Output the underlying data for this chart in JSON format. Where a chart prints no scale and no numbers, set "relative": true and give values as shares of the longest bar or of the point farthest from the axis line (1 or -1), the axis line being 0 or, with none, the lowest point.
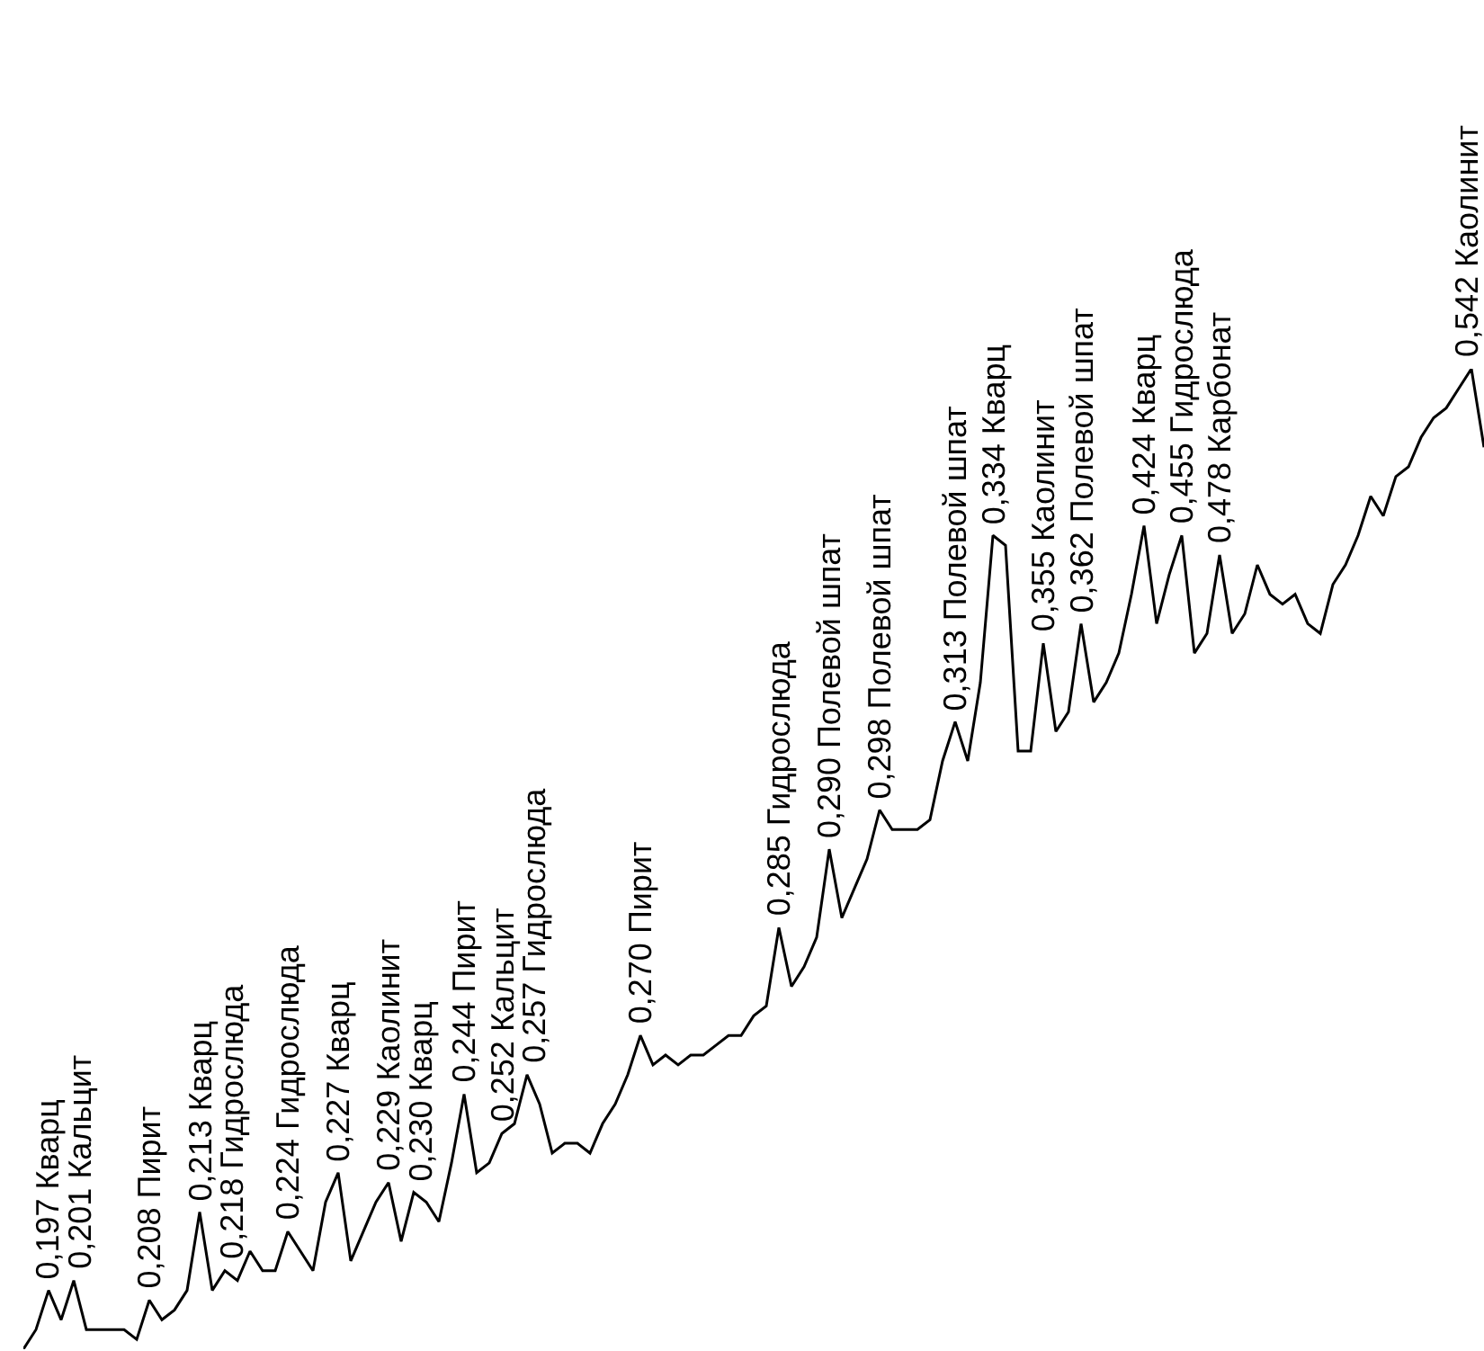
{
  "chart_data": {
    "type": "line",
    "relative": true,
    "categories": [
      null,
      null,
      null,
      null,
      null,
      null,
      null,
      null,
      null,
      null,
      null,
      null,
      null,
      null,
      null,
      null,
      null,
      null,
      null,
      null,
      null,
      null,
      null,
      null,
      null,
      null,
      null,
      null,
      null,
      null,
      null,
      null,
      null,
      null,
      null,
      null,
      null,
      null,
      null,
      null,
      null,
      null,
      null,
      null,
      null,
      null,
      null,
      null,
      null,
      null,
      null,
      null,
      null,
      null,
      null,
      null,
      null,
      null,
      null,
      null,
      null,
      null,
      null,
      null,
      null,
      null,
      null,
      null,
      null,
      null,
      null,
      null,
      null,
      null,
      null,
      null,
      null,
      null,
      null,
      null,
      null,
      null,
      null,
      null,
      null,
      null,
      null,
      null,
      null,
      null,
      null,
      null,
      null,
      null,
      null,
      null,
      null,
      null,
      null,
      null,
      null,
      null,
      null,
      null,
      null,
      null,
      null,
      null,
      null,
      null,
      null,
      null,
      null,
      null,
      null,
      null,
      null
    ],
    "series": [
      {
        "color": "#000000",
        "values": [
          0,
          0.02,
          0.06,
          0.03,
          0.07,
          0.02,
          0.02,
          0.02,
          0.02,
          0.01,
          0.05,
          0.03,
          0.04,
          0.06,
          0.14,
          0.06,
          0.08,
          0.07,
          0.1,
          0.08,
          0.08,
          0.12,
          0.1,
          0.08,
          0.15,
          0.18,
          0.09,
          0.12,
          0.15,
          0.17,
          0.11,
          0.16,
          0.15,
          0.13,
          0.19,
          0.26,
          0.18,
          0.19,
          0.22,
          0.23,
          0.28,
          0.25,
          0.2,
          0.21,
          0.21,
          0.2,
          0.23,
          0.25,
          0.28,
          0.32,
          0.29,
          0.3,
          0.29,
          0.3,
          0.3,
          0.31,
          0.32,
          0.32,
          0.34,
          0.35,
          0.43,
          0.37,
          0.39,
          0.42,
          0.51,
          0.44,
          0.47,
          0.5,
          0.55,
          0.53,
          0.53,
          0.53,
          0.54,
          0.6,
          0.64,
          0.6,
          0.68,
          0.83,
          0.82,
          0.61,
          0.61,
          0.72,
          0.63,
          0.65,
          0.74,
          0.66,
          0.68,
          0.71,
          0.77,
          0.84,
          0.74,
          0.79,
          0.83,
          0.71,
          0.73,
          0.81,
          0.73,
          0.75,
          0.8,
          0.77,
          0.76,
          0.77,
          0.74,
          0.73,
          0.78,
          0.8,
          0.83,
          0.87,
          0.85,
          0.89,
          0.9,
          0.93,
          0.95,
          0.96,
          0.98,
          1,
          0.92
        ]
      }
    ],
    "annotations": [
      {
        "text": "0,197 Кварц",
        "y": 0.06
      },
      {
        "text": "0,201 Кальцит",
        "y": 0.07
      },
      {
        "text": "0,208 Пирит",
        "y": 0.05
      },
      {
        "text": "0,213 Кварц",
        "y": 0.14
      },
      {
        "text": "0,218 Гидрослюда",
        "y": 0.08
      },
      {
        "text": "0,224 Гидрослюда",
        "y": 0.12
      },
      {
        "text": "0,227 Кварц",
        "y": 0.18
      },
      {
        "text": "0,229 Каолинит",
        "y": 0.17
      },
      {
        "text": "0,230 Кварц",
        "y": 0.16
      },
      {
        "text": "0,244 Пирит",
        "y": 0.26
      },
      {
        "text": "0,252 Кальцит",
        "y": 0.22
      },
      {
        "text": "0,257 Гидрослюда",
        "y": 0.28
      },
      {
        "text": "0,270 Пирит",
        "y": 0.32
      },
      {
        "text": "0,285 Гидрослюда",
        "y": 0.43
      },
      {
        "text": "0,290 Полевой шпат",
        "y": 0.51
      },
      {
        "text": "0,298 Полевой шпат",
        "y": 0.55
      },
      {
        "text": "0,313 Полевой шпат",
        "y": 0.64
      },
      {
        "text": "0,334 Кварц",
        "y": 0.83
      },
      {
        "text": "0,355 Каолинит",
        "y": 0.72
      },
      {
        "text": "0,362 Полевой шпат",
        "y": 0.74
      },
      {
        "text": "0,424 Кварц",
        "y": 0.84
      },
      {
        "text": "0,455 Гидрослюда",
        "y": 0.83
      },
      {
        "text": "0,478 Карбонат",
        "y": 0.81
      },
      {
        "text": "0,542 Каолинит",
        "y": 1
      }
    ]
  }
}
